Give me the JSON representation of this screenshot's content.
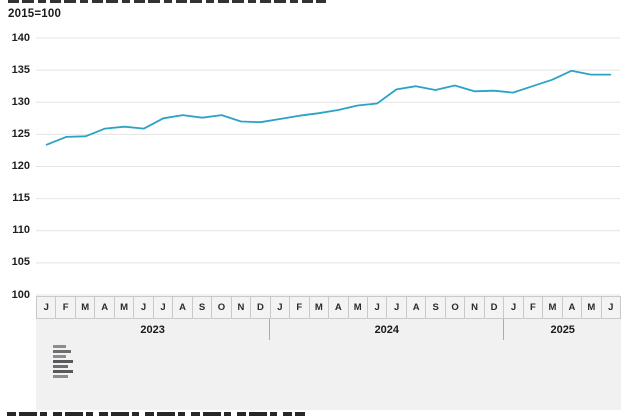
{
  "page": {
    "top_text_clipped": true,
    "bottom_text_clipped": true,
    "unit_label": "2015=100"
  },
  "chart_data": {
    "type": "line",
    "title": "",
    "subtitle_unit": "2015=100",
    "grid": true,
    "legend_position": "none",
    "ylim": [
      100,
      140
    ],
    "yticks": [
      140,
      135,
      130,
      125,
      120,
      115,
      110,
      105,
      100
    ],
    "x_month_letters": [
      "J",
      "F",
      "M",
      "A",
      "M",
      "J",
      "J",
      "A",
      "S",
      "O",
      "N",
      "D",
      "J",
      "F",
      "M",
      "A",
      "M",
      "J",
      "J",
      "A",
      "S",
      "O",
      "N",
      "D",
      "J",
      "F",
      "M",
      "A",
      "M",
      "J"
    ],
    "year_groups": [
      {
        "label": "2023",
        "months": 12
      },
      {
        "label": "2024",
        "months": 12
      },
      {
        "label": "2025",
        "months": 6
      }
    ],
    "categories": [
      "Jan 2023",
      "Feb 2023",
      "Mar 2023",
      "Apr 2023",
      "May 2023",
      "Jun 2023",
      "Jul 2023",
      "Aug 2023",
      "Sep 2023",
      "Oct 2023",
      "Nov 2023",
      "Dec 2023",
      "Jan 2024",
      "Feb 2024",
      "Mar 2024",
      "Apr 2024",
      "May 2024",
      "Jun 2024",
      "Jul 2024",
      "Aug 2024",
      "Sep 2024",
      "Oct 2024",
      "Nov 2024",
      "Dec 2024",
      "Jan 2025",
      "Feb 2025",
      "Mar 2025",
      "Apr 2025",
      "May 2025",
      "Jun 2025"
    ],
    "series": [
      {
        "name": "Index (2015=100)",
        "color": "#2BA3C4",
        "values": [
          123.4,
          124.6,
          124.7,
          125.9,
          126.2,
          125.9,
          127.5,
          128.0,
          127.6,
          128.0,
          127.0,
          126.9,
          127.4,
          127.9,
          128.3,
          128.8,
          129.5,
          129.8,
          132.0,
          132.5,
          131.9,
          132.6,
          131.7,
          131.8,
          131.5,
          132.5,
          133.5,
          134.9,
          134.3,
          134.3
        ]
      }
    ],
    "colors": {
      "line": "#2BA3C4",
      "gridline": "#e4e4e4",
      "axis_band_bg": "#f1f1f2",
      "month_cell_bg": "#f3f3f3",
      "cell_border": "#c9c9c9",
      "text": "#1a1a1a"
    }
  },
  "footer": {
    "logo_name": "cbs-logo"
  }
}
